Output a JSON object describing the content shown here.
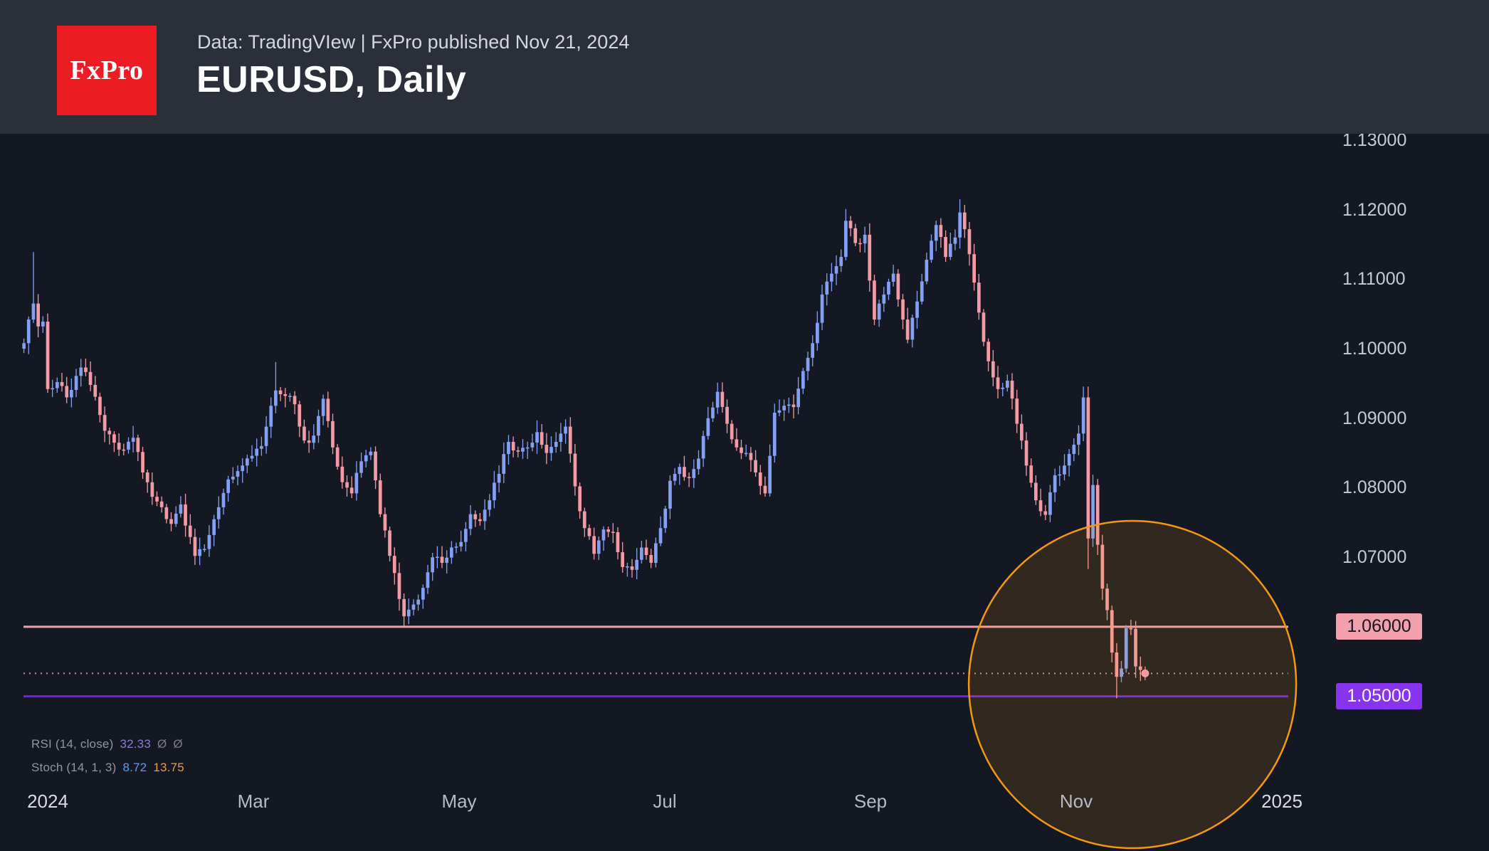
{
  "header": {
    "logo_text": "FxPro",
    "meta": "Data: TradingVIew | FxPro published Nov 21, 2024",
    "title": "EURUSD, Daily"
  },
  "chart_data": {
    "type": "candlestick",
    "symbol": "EURUSD",
    "timeframe": "Daily",
    "title": "EURUSD, Daily",
    "current_price": 1.0533,
    "colors": {
      "up": "#84a0f4",
      "down": "#f49aa4",
      "background": "#141822",
      "header_bg": "#2a2f3a",
      "logo_red": "#ed1b24",
      "accent_orange": "#f5980f"
    },
    "y_axis": {
      "side": "right",
      "ticks": [
        {
          "v": 1.13,
          "t": "1.13000"
        },
        {
          "v": 1.12,
          "t": "1.12000"
        },
        {
          "v": 1.11,
          "t": "1.11000"
        },
        {
          "v": 1.1,
          "t": "1.10000"
        },
        {
          "v": 1.09,
          "t": "1.09000"
        },
        {
          "v": 1.08,
          "t": "1.08000"
        },
        {
          "v": 1.07,
          "t": "1.07000"
        },
        {
          "v": 1.06,
          "t": "1.06000",
          "badge": true
        },
        {
          "v": 1.05,
          "t": "1.05000",
          "badge": true
        }
      ]
    },
    "x_axis": {
      "labels": [
        {
          "t": "2024",
          "m": 0,
          "year": true
        },
        {
          "t": "Mar",
          "m": 2
        },
        {
          "t": "May",
          "m": 4
        },
        {
          "t": "Jul",
          "m": 6
        },
        {
          "t": "Sep",
          "m": 8
        },
        {
          "t": "Nov",
          "m": 10
        },
        {
          "t": "2025",
          "m": 12,
          "year": true
        }
      ]
    },
    "levels": [
      {
        "name": "resistance-1-06",
        "price": 1.06,
        "label": "1.06000",
        "line_color": "#f3a0ad",
        "badge_bg": "#f3a0ad",
        "badge_text": "#131722"
      },
      {
        "name": "support-1-05",
        "price": 1.05,
        "label": "1.05000",
        "line_color": "#7a1de8",
        "badge_bg": "#8833ee",
        "badge_text": "#ffffff"
      }
    ],
    "highlight_circle": {
      "center_month": 10.55,
      "center_price": 1.0517,
      "radius_px": 230,
      "color": "#f5980f"
    },
    "anchors": [
      [
        -5,
        1.1008
      ],
      [
        -4,
        1.1042
      ],
      [
        -3,
        1.1065
      ],
      [
        -2,
        1.1032
      ],
      [
        -1,
        1.1039
      ],
      [
        0,
        1.0942
      ],
      [
        2,
        1.0952
      ],
      [
        4,
        1.093
      ],
      [
        7,
        1.0973
      ],
      [
        9,
        1.0948
      ],
      [
        12,
        1.0882
      ],
      [
        15,
        1.0855
      ],
      [
        18,
        1.0872
      ],
      [
        20,
        1.0822
      ],
      [
        22,
        1.0787
      ],
      [
        24,
        1.0772
      ],
      [
        26,
        1.0748
      ],
      [
        28,
        1.0776
      ],
      [
        31,
        1.0702
      ],
      [
        33,
        1.0712
      ],
      [
        36,
        1.0772
      ],
      [
        38,
        1.0812
      ],
      [
        41,
        1.0832
      ],
      [
        43,
        1.0846
      ],
      [
        45,
        1.086
      ],
      [
        48,
        1.094
      ],
      [
        50,
        1.0932
      ],
      [
        52,
        1.092
      ],
      [
        54,
        1.0868
      ],
      [
        56,
        1.0875
      ],
      [
        58,
        1.0928
      ],
      [
        60,
        1.0858
      ],
      [
        62,
        1.0808
      ],
      [
        64,
        1.0792
      ],
      [
        66,
        1.0838
      ],
      [
        68,
        1.0852
      ],
      [
        70,
        1.0762
      ],
      [
        72,
        1.0702
      ],
      [
        74,
        1.064
      ],
      [
        75,
        1.0615
      ],
      [
        77,
        1.0632
      ],
      [
        79,
        1.0656
      ],
      [
        81,
        1.07
      ],
      [
        83,
        1.0692
      ],
      [
        85,
        1.0714
      ],
      [
        87,
        1.0722
      ],
      [
        89,
        1.0762
      ],
      [
        91,
        1.0752
      ],
      [
        93,
        1.0782
      ],
      [
        95,
        1.082
      ],
      [
        97,
        1.0866
      ],
      [
        99,
        1.0852
      ],
      [
        101,
        1.0858
      ],
      [
        103,
        1.088
      ],
      [
        105,
        1.085
      ],
      [
        107,
        1.0866
      ],
      [
        109,
        1.0888
      ],
      [
        111,
        1.0802
      ],
      [
        113,
        1.0742
      ],
      [
        115,
        1.0705
      ],
      [
        117,
        1.074
      ],
      [
        119,
        1.0736
      ],
      [
        121,
        1.0686
      ],
      [
        123,
        1.0682
      ],
      [
        125,
        1.0714
      ],
      [
        127,
        1.0692
      ],
      [
        129,
        1.0742
      ],
      [
        131,
        1.081
      ],
      [
        133,
        1.083
      ],
      [
        135,
        1.0814
      ],
      [
        137,
        1.0842
      ],
      [
        139,
        1.09
      ],
      [
        141,
        1.0938
      ],
      [
        143,
        1.0892
      ],
      [
        145,
        1.0858
      ],
      [
        147,
        1.085
      ],
      [
        149,
        1.0822
      ],
      [
        151,
        1.0792
      ],
      [
        153,
        1.0908
      ],
      [
        155,
        1.0918
      ],
      [
        157,
        1.0916
      ],
      [
        159,
        1.0968
      ],
      [
        161,
        1.1008
      ],
      [
        163,
        1.1078
      ],
      [
        165,
        1.1108
      ],
      [
        167,
        1.1132
      ],
      [
        168,
        1.1184
      ],
      [
        170,
        1.1152
      ],
      [
        172,
        1.1164
      ],
      [
        174,
        1.1042
      ],
      [
        176,
        1.1078
      ],
      [
        178,
        1.1108
      ],
      [
        180,
        1.1042
      ],
      [
        181,
        1.1013
      ],
      [
        183,
        1.1068
      ],
      [
        185,
        1.1128
      ],
      [
        187,
        1.1178
      ],
      [
        189,
        1.1132
      ],
      [
        191,
        1.116
      ],
      [
        192,
        1.1196
      ],
      [
        194,
        1.1136
      ],
      [
        196,
        1.1052
      ],
      [
        198,
        1.0982
      ],
      [
        200,
        1.0942
      ],
      [
        202,
        1.0954
      ],
      [
        204,
        1.0892
      ],
      [
        206,
        1.0832
      ],
      [
        208,
        1.0782
      ],
      [
        210,
        1.0761
      ],
      [
        212,
        1.0818
      ],
      [
        214,
        1.0832
      ],
      [
        216,
        1.0862
      ],
      [
        217,
        1.0878
      ],
      [
        218,
        1.093
      ],
      [
        219,
        1.0727
      ],
      [
        220,
        1.0804
      ],
      [
        221,
        1.0718
      ],
      [
        222,
        1.0655
      ],
      [
        223,
        1.0624
      ],
      [
        224,
        1.0563
      ],
      [
        225,
        1.0528
      ],
      [
        226,
        1.054
      ],
      [
        227,
        1.0598
      ],
      [
        228,
        1.0597
      ],
      [
        229,
        1.0543
      ],
      [
        230,
        1.0538
      ],
      [
        231,
        1.0533
      ]
    ],
    "wick_overrides": [
      {
        "i": -3,
        "high": 1.1139
      },
      {
        "i": 48,
        "high": 1.0981
      },
      {
        "i": 75,
        "low": 1.0601
      },
      {
        "i": 168,
        "high": 1.1201
      },
      {
        "i": 192,
        "high": 1.1215
      },
      {
        "i": 218,
        "high": 1.0937
      },
      {
        "i": 219,
        "low": 1.0683
      },
      {
        "i": 225,
        "low": 1.0497
      }
    ],
    "indicators": [
      {
        "label": "RSI (14, close)",
        "values": [
          {
            "t": "32.33",
            "c": "#8d7bd0"
          },
          {
            "t": "Ø",
            "c": "#787b86"
          },
          {
            "t": "Ø",
            "c": "#787b86"
          }
        ]
      },
      {
        "label": "Stoch (14, 1, 3)",
        "values": [
          {
            "t": "8.72",
            "c": "#5b9cf6"
          },
          {
            "t": "13.75",
            "c": "#ef9b3a"
          }
        ]
      }
    ]
  }
}
